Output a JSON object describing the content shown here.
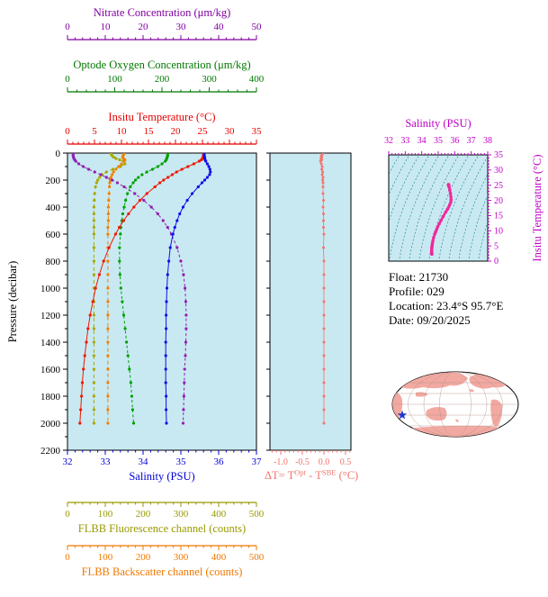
{
  "style": {
    "plot_bg": "#C8E9F2",
    "frame": "#000000"
  },
  "info": {
    "lines": [
      "Float:  21730",
      "Profile:  029",
      "Location:  23.4°S  95.7°E",
      "Date:  09/20/2025"
    ]
  },
  "map": {
    "land_color": "#F2A9A2",
    "ocean_color": "#FFFFFF",
    "graticule_color": "#B09088",
    "marker": "float-location-star",
    "marker_color": "#2233CC"
  },
  "chart_data": [
    {
      "type": "line",
      "id": "profiles",
      "ylabel": "Pressure (decibar)",
      "ylim": [
        0,
        2200
      ],
      "yticks": [
        0,
        200,
        400,
        600,
        800,
        1000,
        1200,
        1400,
        1600,
        1800,
        2000,
        2200
      ],
      "pressure_db": [
        0,
        10,
        20,
        30,
        40,
        50,
        60,
        80,
        100,
        120,
        140,
        160,
        180,
        200,
        220,
        250,
        300,
        350,
        400,
        450,
        500,
        550,
        600,
        700,
        800,
        900,
        1000,
        1100,
        1200,
        1300,
        1400,
        1500,
        1600,
        1700,
        1800,
        1900,
        2000
      ],
      "axes": [
        {
          "id": "nitrate",
          "label": "Nitrate Concentration (μm/kg)",
          "color": "#8000A0",
          "lim": [
            0,
            50
          ],
          "ticks": [
            0,
            10,
            20,
            30,
            40,
            50
          ]
        },
        {
          "id": "oxygen",
          "label": "Optode Oxygen Concentration (μm/kg)",
          "color": "#007800",
          "lim": [
            0,
            400
          ],
          "ticks": [
            0,
            100,
            200,
            300,
            400
          ]
        },
        {
          "id": "temperature",
          "label": "Insitu Temperature (°C)",
          "color": "#E80000",
          "lim": [
            0,
            35
          ],
          "ticks": [
            0,
            5,
            10,
            15,
            20,
            25,
            30,
            35
          ]
        },
        {
          "id": "salinity",
          "label": "Salinity (PSU)",
          "color": "#0000D8",
          "lim": [
            32,
            37
          ],
          "ticks": [
            32,
            33,
            34,
            35,
            36,
            37
          ]
        },
        {
          "id": "fluorescence",
          "label": "FLBB Fluorescence channel (counts)",
          "color": "#999900",
          "lim": [
            0,
            500
          ],
          "ticks": [
            0,
            100,
            200,
            300,
            400,
            500
          ]
        },
        {
          "id": "backscatter",
          "label": "FLBB Backscatter channel (counts)",
          "color": "#F07800",
          "lim": [
            0,
            500
          ],
          "ticks": [
            0,
            100,
            200,
            300,
            400,
            500
          ]
        }
      ],
      "series": [
        {
          "name": "FLBB Fluorescence",
          "axis": "fluorescence",
          "color": "#A8A800",
          "dash": "4,3",
          "values": [
            115,
            116,
            118,
            122,
            128,
            138,
            148,
            152,
            140,
            120,
            103,
            92,
            85,
            80,
            77,
            74,
            72,
            71,
            70,
            70,
            70,
            70,
            70,
            70,
            70,
            70,
            70,
            70,
            70,
            70,
            70,
            70,
            70,
            70,
            70,
            70,
            70
          ]
        },
        {
          "name": "FLBB Backscatter",
          "axis": "backscatter",
          "color": "#F08000",
          "dash": "4,3",
          "values": [
            150,
            149,
            147,
            146,
            148,
            152,
            150,
            143,
            135,
            128,
            122,
            118,
            115,
            113,
            112,
            111,
            110,
            109,
            108,
            108,
            108,
            107,
            107,
            107,
            107,
            107,
            107,
            107,
            107,
            107,
            107,
            107,
            107,
            107,
            107,
            107,
            107
          ]
        },
        {
          "name": "Optode Oxygen Concentration",
          "axis": "oxygen",
          "color": "#00A000",
          "dash": "3,2.5",
          "values": [
            212,
            212,
            212,
            211,
            210,
            209,
            207,
            200,
            191,
            180,
            168,
            158,
            150,
            144,
            139,
            133,
            127,
            123,
            120,
            117,
            115,
            113,
            112,
            110,
            110,
            111,
            113,
            116,
            119,
            122,
            125,
            128,
            131,
            134,
            136,
            138,
            140
          ]
        },
        {
          "name": "Nitrate Concentration",
          "axis": "nitrate",
          "color": "#9020B0",
          "dash": "3,2.5",
          "values": [
            1.5,
            1.5,
            1.5,
            1.6,
            1.7,
            1.9,
            2.2,
            3.0,
            4.2,
            5.6,
            7.2,
            8.8,
            10.3,
            11.8,
            13.2,
            15.0,
            17.8,
            20.2,
            22.2,
            23.9,
            25.3,
            26.5,
            27.5,
            29.0,
            30.0,
            30.7,
            31.1,
            31.3,
            31.4,
            31.4,
            31.3,
            31.2,
            31.0,
            30.9,
            30.8,
            30.7,
            30.6
          ]
        },
        {
          "name": "Insitu Temperature",
          "axis": "temperature",
          "color": "#F01800",
          "dash": "",
          "values": [
            25.2,
            25.2,
            25.2,
            25.1,
            25.0,
            24.8,
            24.4,
            23.4,
            22.3,
            21.2,
            20.2,
            19.4,
            18.6,
            17.8,
            17.1,
            16.2,
            14.7,
            13.4,
            12.3,
            11.3,
            10.4,
            9.6,
            8.9,
            7.7,
            6.7,
            5.9,
            5.2,
            4.7,
            4.2,
            3.8,
            3.5,
            3.2,
            2.95,
            2.75,
            2.6,
            2.45,
            2.3
          ]
        },
        {
          "name": "Salinity",
          "axis": "salinity",
          "color": "#1010E8",
          "dash": "",
          "values": [
            35.62,
            35.62,
            35.62,
            35.63,
            35.63,
            35.64,
            35.66,
            35.7,
            35.74,
            35.77,
            35.78,
            35.76,
            35.7,
            35.63,
            35.56,
            35.46,
            35.3,
            35.17,
            35.06,
            34.97,
            34.9,
            34.84,
            34.79,
            34.72,
            34.68,
            34.65,
            34.63,
            34.62,
            34.61,
            34.61,
            34.6,
            34.6,
            34.6,
            34.6,
            34.61,
            34.61,
            34.62
          ]
        }
      ]
    },
    {
      "type": "scatter",
      "id": "delta_t",
      "xlabel_parts": {
        "prefix": "ΔT= T",
        "sup1": "Opt",
        "mid": " - T",
        "sup2": "SBE",
        "suffix": " (°C)"
      },
      "xlim": [
        -1.25,
        0.625
      ],
      "xticks": [
        -1.0,
        -0.5,
        0.0,
        0.5
      ],
      "xtick_labels": [
        "-1.0",
        "-0.5",
        "0.0",
        "0.5"
      ],
      "color": "#F4736B",
      "values": [
        -0.02,
        -0.04,
        -0.06,
        -0.05,
        -0.07,
        -0.05,
        -0.08,
        -0.06,
        -0.04,
        -0.05,
        -0.03,
        -0.04,
        -0.02,
        -0.03,
        -0.02,
        -0.02,
        -0.02,
        -0.01,
        -0.02,
        -0.01,
        -0.01,
        -0.01,
        0.0,
        -0.01,
        0.0,
        0.0,
        0.0,
        0.0,
        0.0,
        0.0,
        0.0,
        0.0,
        0.0,
        0.0,
        0.0,
        0.0,
        0.0
      ]
    },
    {
      "type": "line",
      "id": "ts_diagram",
      "xlabel": "Salinity (PSU)",
      "ylabel": "Insitu Temperature (°C)",
      "xlim": [
        32,
        38
      ],
      "xticks": [
        32,
        33,
        34,
        35,
        36,
        37,
        38
      ],
      "ylim": [
        0,
        35
      ],
      "yticks": [
        0,
        5,
        10,
        15,
        20,
        25,
        30,
        35
      ],
      "label_color": "#C000C8",
      "curve_color": "#F0289B",
      "contour_color": "#2E8B8B",
      "salinity_psu": [
        35.62,
        35.62,
        35.62,
        35.63,
        35.63,
        35.64,
        35.66,
        35.7,
        35.74,
        35.77,
        35.78,
        35.76,
        35.7,
        35.63,
        35.56,
        35.46,
        35.3,
        35.17,
        35.06,
        34.97,
        34.9,
        34.84,
        34.79,
        34.72,
        34.68,
        34.65,
        34.63,
        34.62,
        34.61,
        34.61,
        34.6,
        34.6,
        34.6,
        34.6,
        34.61,
        34.61,
        34.62
      ],
      "temperature_c": [
        25.2,
        25.2,
        25.2,
        25.1,
        25.0,
        24.8,
        24.4,
        23.4,
        22.3,
        21.2,
        20.2,
        19.4,
        18.6,
        17.8,
        17.1,
        16.2,
        14.7,
        13.4,
        12.3,
        11.3,
        10.4,
        9.6,
        8.9,
        7.7,
        6.7,
        5.9,
        5.2,
        4.7,
        4.2,
        3.8,
        3.5,
        3.2,
        2.95,
        2.75,
        2.6,
        2.45,
        2.3
      ]
    }
  ]
}
